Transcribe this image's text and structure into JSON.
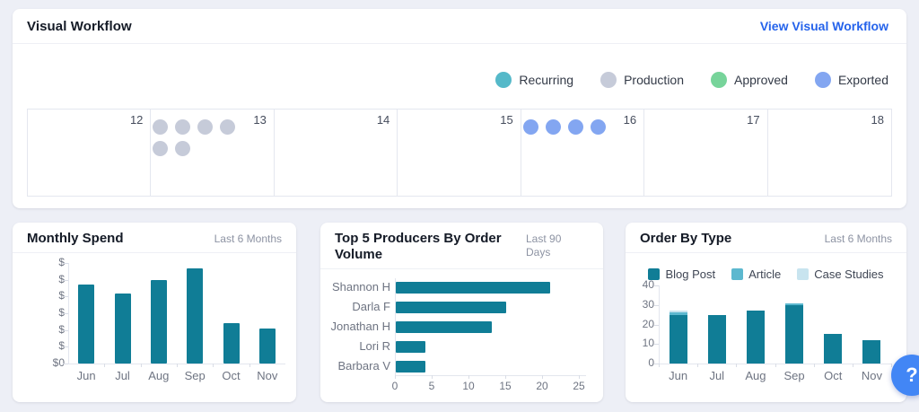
{
  "workflow": {
    "title": "Visual Workflow",
    "link_label": "View Visual Workflow",
    "legend": [
      {
        "key": "recurring",
        "label": "Recurring",
        "color": "#55b9c9"
      },
      {
        "key": "production",
        "label": "Production",
        "color": "#c6cbd9"
      },
      {
        "key": "approved",
        "label": "Approved",
        "color": "#77d49a"
      },
      {
        "key": "exported",
        "label": "Exported",
        "color": "#83a6f1"
      }
    ],
    "calendar": {
      "dot_colors": {
        "recurring": "#55b9c9",
        "production": "#c6cbd9",
        "approved": "#77d49a",
        "exported": "#83a6f1"
      },
      "days": [
        {
          "day": "12",
          "dots": []
        },
        {
          "day": "13",
          "dots": [
            "production",
            "production",
            "production",
            "production",
            "production",
            "production"
          ]
        },
        {
          "day": "14",
          "dots": []
        },
        {
          "day": "15",
          "dots": []
        },
        {
          "day": "16",
          "dots": [
            "exported",
            "exported",
            "exported",
            "exported"
          ]
        },
        {
          "day": "17",
          "dots": []
        },
        {
          "day": "18",
          "dots": []
        }
      ]
    }
  },
  "cards": {
    "monthly_spend": {
      "title": "Monthly Spend",
      "period": "Last 6 Months",
      "chart_data": {
        "type": "bar",
        "categories": [
          "Jun",
          "Jul",
          "Aug",
          "Sep",
          "Oct",
          "Nov"
        ],
        "values": [
          4.7,
          4.2,
          5.0,
          5.7,
          2.4,
          2.1
        ],
        "ylim": [
          0,
          6
        ],
        "ytick_labels_bottom_to_top": [
          "$0",
          "$",
          "$",
          "$",
          "$",
          "$",
          "$"
        ],
        "note": "dollar amounts on y-axis are masked, shown only as $ symbols",
        "bar_color": "#107d96",
        "grid": false
      }
    },
    "top_producers": {
      "title": "Top 5 Producers By Order Volume",
      "period": "Last 90 Days",
      "chart_data": {
        "type": "bar-horizontal",
        "categories": [
          "Shannon H",
          "Darla F",
          "Jonathan H",
          "Lori R",
          "Barbara V"
        ],
        "values": [
          21,
          15,
          13,
          4,
          4
        ],
        "xlim": [
          0,
          25
        ],
        "xticks": [
          0,
          5,
          10,
          15,
          20,
          25
        ],
        "bar_color": "#107d96",
        "grid": false
      }
    },
    "order_by_type": {
      "title": "Order By Type",
      "period": "Last 6 Months",
      "chart_data": {
        "type": "stacked-bar",
        "categories": [
          "Jun",
          "Jul",
          "Aug",
          "Sep",
          "Oct",
          "Nov"
        ],
        "series": [
          {
            "name": "Blog Post",
            "color": "#107d96",
            "values": [
              25,
              25,
              27,
              30,
              15,
              12
            ]
          },
          {
            "name": "Article",
            "color": "#5cb8cf",
            "values": [
              1,
              0,
              0,
              1,
              0,
              0
            ]
          },
          {
            "name": "Case Studies",
            "color": "#c8e4ef",
            "values": [
              1,
              0,
              0,
              0,
              0,
              0
            ]
          }
        ],
        "ylim": [
          0,
          40
        ],
        "yticks": [
          0,
          10,
          20,
          30,
          40
        ],
        "legend_position": "top",
        "grid": false
      }
    }
  },
  "help": {
    "label": "?",
    "color": "#4286f5"
  },
  "colors": {
    "page_bg": "#edeff6",
    "card_bg": "#ffffff",
    "border": "#e4e7ef",
    "title_text": "#141a26",
    "secondary_text": "#8d93a3",
    "axis_text": "#6e7482",
    "link": "#2563eb"
  }
}
